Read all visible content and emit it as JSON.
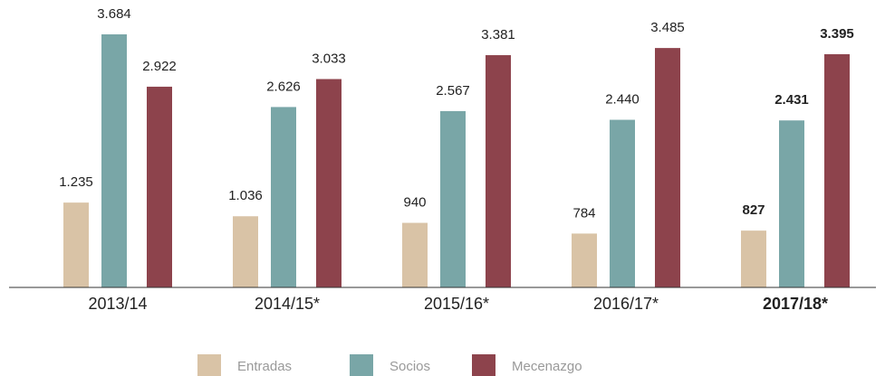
{
  "chart_data": {
    "type": "bar",
    "categories": [
      "2013/14",
      "2014/15*",
      "2015/16*",
      "2016/17*",
      "2017/18*"
    ],
    "series": [
      {
        "name": "Entradas",
        "color": "#d9c3a6",
        "values": [
          1235,
          1036,
          940,
          784,
          827
        ],
        "value_labels": [
          "1.235",
          "1.036",
          "940",
          "784",
          "827"
        ]
      },
      {
        "name": "Socios",
        "color": "#79a6a7",
        "values": [
          3684,
          2626,
          2567,
          2440,
          2431
        ],
        "value_labels": [
          "3.684",
          "2.626",
          "2.567",
          "2.440",
          "2.431"
        ]
      },
      {
        "name": "Mecenazgo",
        "color": "#8d434c",
        "values": [
          2922,
          3033,
          3381,
          3485,
          3395
        ],
        "value_labels": [
          "2.922",
          "3.033",
          "3.381",
          "3.485",
          "3.395"
        ]
      }
    ],
    "highlight": 4,
    "legend": "bottom"
  }
}
